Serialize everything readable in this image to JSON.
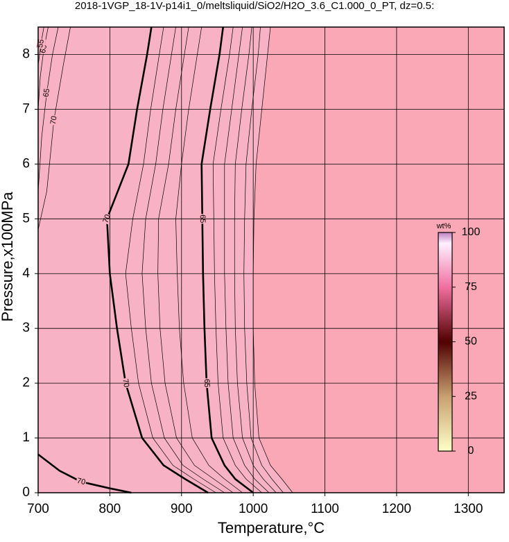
{
  "chart_data": {
    "type": "contour",
    "title": "2018-1VGP_18-1V-p14i1_0/meltsliquid/SiO2/H2O_3.6_C1.000_0_PT, dz=0.5:",
    "x_label": "Temperature,°C",
    "y_label": "Pressure,x100MPa",
    "xlim": [
      700,
      1350
    ],
    "ylim": [
      0,
      8.5
    ],
    "xticks": [
      700,
      800,
      900,
      1000,
      1100,
      1200,
      1300
    ],
    "yticks": [
      0,
      1,
      2,
      3,
      4,
      5,
      6,
      7,
      8
    ],
    "grid": true,
    "y": [
      0,
      0.25,
      0.5,
      1,
      2,
      3,
      4,
      5,
      6,
      7,
      8,
      8.5
    ],
    "contours": [
      {
        "level": 70,
        "bold": true,
        "x": [
          937,
          905,
          875,
          845,
          822,
          810,
          800,
          796,
          826,
          838,
          852,
          858
        ]
      },
      {
        "level": 69,
        "x": [
          948,
          917,
          888,
          860,
          840,
          830,
          822,
          832,
          847,
          857,
          869,
          875
        ]
      },
      {
        "level": 68,
        "x": [
          960,
          930,
          902,
          876,
          858,
          850,
          845,
          850,
          864,
          874,
          886,
          892
        ]
      },
      {
        "level": 67,
        "x": [
          972,
          945,
          918,
          893,
          877,
          870,
          867,
          868,
          882,
          892,
          904,
          910
        ]
      },
      {
        "level": 66,
        "x": [
          985,
          960,
          938,
          915,
          903,
          897,
          894,
          892,
          900,
          910,
          922,
          928
        ]
      },
      {
        "level": 65,
        "bold": true,
        "x": [
          1000,
          975,
          960,
          942,
          935,
          932,
          930,
          929,
          928,
          940,
          953,
          958
        ]
      },
      {
        "level": 64,
        "x": [
          1012,
          990,
          975,
          958,
          951,
          948,
          946,
          945,
          944,
          955,
          967,
          972
        ]
      },
      {
        "level": 63,
        "x": [
          1022,
          1002,
          988,
          972,
          965,
          962,
          960,
          960,
          960,
          970,
          980,
          985
        ]
      },
      {
        "level": 62,
        "x": [
          1032,
          1014,
          1000,
          985,
          978,
          975,
          974,
          974,
          975,
          984,
          994,
          998
        ]
      },
      {
        "level": 61,
        "x": [
          1042,
          1026,
          1012,
          997,
          991,
          988,
          987,
          988,
          990,
          998,
          1007,
          1010
        ]
      },
      {
        "level": 60,
        "x": [
          1055,
          1040,
          1024,
          1008,
          1002,
          1000,
          1000,
          1001,
          1004,
          1012,
          1020,
          1024
        ]
      },
      {
        "level": 70,
        "bold": true,
        "x": [
          700,
          730,
          760,
          800,
          830
        ],
        "y": [
          0.7,
          0.4,
          0.2,
          0.08,
          0
        ]
      },
      {
        "level": 70,
        "x": [
          700,
          712,
          722,
          735,
          745
        ],
        "y": [
          4.8,
          5.5,
          6.8,
          7.8,
          8.5
        ]
      },
      {
        "level": 65,
        "x": [
          700,
          705,
          712,
          720,
          728
        ],
        "y": [
          5.5,
          6.5,
          7.3,
          8,
          8.5
        ]
      },
      {
        "level": 60,
        "x": [
          700,
          703,
          708,
          714
        ],
        "y": [
          7,
          7.6,
          8.1,
          8.5
        ]
      },
      {
        "level": 55,
        "x": [
          700,
          704,
          708
        ],
        "y": [
          7.8,
          8.2,
          8.5
        ]
      }
    ],
    "colorbar": {
      "label": "wt%",
      "lim": [
        0,
        100
      ],
      "ticks": [
        0,
        25,
        50,
        75,
        100
      ]
    }
  }
}
